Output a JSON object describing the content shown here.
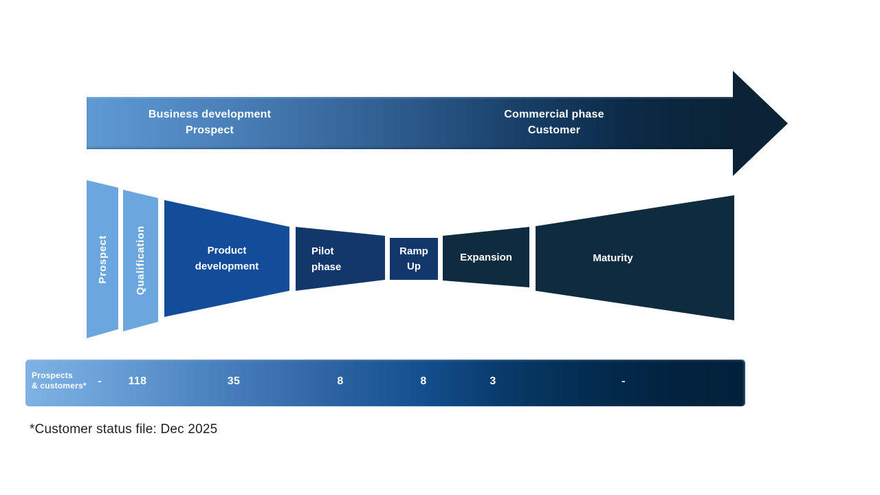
{
  "banner": {
    "left": {
      "title": "Business development",
      "subtitle": "Prospect"
    },
    "right": {
      "title": "Commercial phase",
      "subtitle": "Customer"
    }
  },
  "funnel": {
    "stages": [
      {
        "id": "prospect",
        "lines": [
          "Prospect"
        ],
        "color": "#6CA6DE"
      },
      {
        "id": "qualification",
        "lines": [
          "Qualification"
        ],
        "color": "#6CA6DE"
      },
      {
        "id": "product-development",
        "lines": [
          "Product",
          "development"
        ],
        "color": "#134C99"
      },
      {
        "id": "pilot-phase",
        "lines": [
          "Pilot",
          "phase"
        ],
        "color": "#12386B"
      },
      {
        "id": "ramp-up",
        "lines": [
          "Ramp",
          "Up"
        ],
        "color": "#12386B"
      },
      {
        "id": "expansion",
        "lines": [
          "Expansion"
        ],
        "color": "#0E2B3F"
      },
      {
        "id": "maturity",
        "lines": [
          "Maturity"
        ],
        "color": "#0E2B3F"
      }
    ]
  },
  "counts": {
    "row_label_line1": "Prospects",
    "row_label_line2": "& customers*",
    "values": [
      "-",
      "118",
      "35",
      "8",
      "8",
      "3",
      "-"
    ]
  },
  "footnote": "*Customer status file: Dec 2025",
  "colors": {
    "light_blue": "#6CA6DE",
    "royal_blue": "#134C99",
    "dark_blue": "#12386B",
    "navy": "#0E2B3F",
    "banner_gradient_start": "#5F9AD5",
    "banner_gradient_end": "#0A2335",
    "bar_gradient_start": "#7FB2E3",
    "bar_gradient_end": "#02203A",
    "footnote_text": "#1F1F1F",
    "stage_text": "#FFFFFF"
  }
}
